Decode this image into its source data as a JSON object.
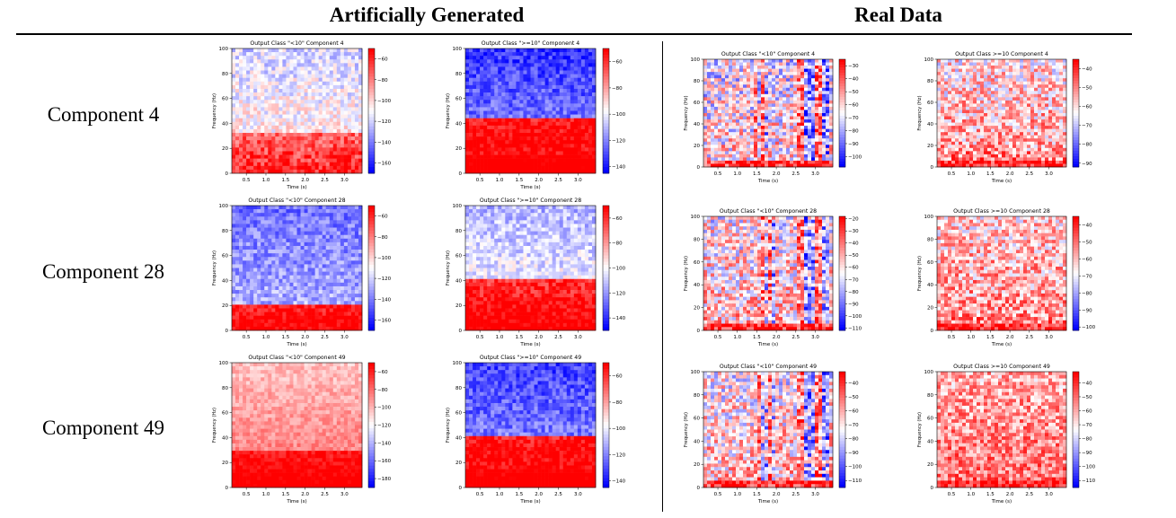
{
  "headers": {
    "artificial": "Artificially Generated",
    "real": "Real Data"
  },
  "row_labels": [
    "Component 4",
    "Component 28",
    "Component 49"
  ],
  "colors": {
    "low": "#0000ff",
    "mid": "#ffffff",
    "high": "#ff0000"
  },
  "chart_data": [
    {
      "type": "heatmap",
      "title": "Output Class \"<10\" Component 4",
      "xlabel": "Time (s)",
      "ylabel": "Frequency (Hz)",
      "xticks": [
        "0.5",
        "1.0",
        "1.5",
        "2.0",
        "2.5",
        "3.0"
      ],
      "yticks": [
        "0",
        "20",
        "40",
        "60",
        "80",
        "100"
      ],
      "ylim": [
        0,
        100
      ],
      "colorbar_ticks": [
        "-60",
        "-80",
        "-100",
        "-120",
        "-140",
        "-160"
      ],
      "colorbar_range": [
        -170,
        -50
      ]
    },
    {
      "type": "heatmap",
      "title": "Output Class \">=10\" Component 4",
      "xlabel": "Time (s)",
      "ylabel": "Frequency (Hz)",
      "xticks": [
        "0.5",
        "1.0",
        "1.5",
        "2.0",
        "2.5",
        "3.0"
      ],
      "yticks": [
        "0",
        "20",
        "40",
        "60",
        "80",
        "100"
      ],
      "ylim": [
        0,
        100
      ],
      "colorbar_ticks": [
        "-60",
        "-80",
        "-100",
        "-120",
        "-140"
      ],
      "colorbar_range": [
        -145,
        -50
      ]
    },
    {
      "type": "heatmap",
      "title": "Output Class \"<10\" Component 4",
      "xlabel": "Time (s)",
      "ylabel": "Frequency (Hz)",
      "xticks": [
        "0.5",
        "1.0",
        "1.5",
        "2.0",
        "2.5",
        "3.0"
      ],
      "yticks": [
        "0",
        "20",
        "40",
        "60",
        "80",
        "100"
      ],
      "ylim": [
        0,
        100
      ],
      "colorbar_ticks": [
        "-30",
        "-40",
        "-50",
        "-60",
        "-70",
        "-80",
        "-90",
        "-100"
      ],
      "colorbar_range": [
        -108,
        -25
      ]
    },
    {
      "type": "heatmap",
      "title": "Output Class >=10 Component 4",
      "xlabel": "Time (s)",
      "ylabel": "Frequency (Hz)",
      "xticks": [
        "0.5",
        "1.0",
        "1.5",
        "2.0",
        "2.5",
        "3.0"
      ],
      "yticks": [
        "0",
        "20",
        "40",
        "60",
        "80",
        "100"
      ],
      "ylim": [
        0,
        100
      ],
      "colorbar_ticks": [
        "-40",
        "-50",
        "-60",
        "-70",
        "-80",
        "-90"
      ],
      "colorbar_range": [
        -92,
        -35
      ]
    },
    {
      "type": "heatmap",
      "title": "Output Class \"<10\" Component 28",
      "xlabel": "Time (s)",
      "ylabel": "Frequency (Hz)",
      "xticks": [
        "0.5",
        "1.0",
        "1.5",
        "2.0",
        "2.5",
        "3.0"
      ],
      "yticks": [
        "0",
        "20",
        "40",
        "60",
        "80",
        "100"
      ],
      "ylim": [
        0,
        100
      ],
      "colorbar_ticks": [
        "-60",
        "-80",
        "-100",
        "-120",
        "-140",
        "-160"
      ],
      "colorbar_range": [
        -170,
        -50
      ]
    },
    {
      "type": "heatmap",
      "title": "Output Class \">=10\" Component 28",
      "xlabel": "Time (s)",
      "ylabel": "Frequency (Hz)",
      "xticks": [
        "0.5",
        "1.0",
        "1.5",
        "2.0",
        "2.5",
        "3.0"
      ],
      "yticks": [
        "0",
        "20",
        "40",
        "60",
        "80",
        "100"
      ],
      "ylim": [
        0,
        100
      ],
      "colorbar_ticks": [
        "-60",
        "-80",
        "-100",
        "-120",
        "-140"
      ],
      "colorbar_range": [
        -150,
        -50
      ]
    },
    {
      "type": "heatmap",
      "title": "Output Class \"<10\" Component 28",
      "xlabel": "Time (s)",
      "ylabel": "Frequency (Hz)",
      "xticks": [
        "0.5",
        "1.0",
        "1.5",
        "2.0",
        "2.5",
        "3.0"
      ],
      "yticks": [
        "0",
        "20",
        "40",
        "60",
        "80",
        "100"
      ],
      "ylim": [
        0,
        100
      ],
      "colorbar_ticks": [
        "-20",
        "-30",
        "-40",
        "-50",
        "-60",
        "-70",
        "-80",
        "-90",
        "-100",
        "-110"
      ],
      "colorbar_range": [
        -112,
        -18
      ]
    },
    {
      "type": "heatmap",
      "title": "Output Class >=10 Component 28",
      "xlabel": "Time (s)",
      "ylabel": "Frequency (Hz)",
      "xticks": [
        "0.5",
        "1.0",
        "1.5",
        "2.0",
        "2.5",
        "3.0"
      ],
      "yticks": [
        "0",
        "20",
        "40",
        "60",
        "80",
        "100"
      ],
      "ylim": [
        0,
        100
      ],
      "colorbar_ticks": [
        "-40",
        "-50",
        "-60",
        "-70",
        "-80",
        "-90",
        "-100"
      ],
      "colorbar_range": [
        -102,
        -35
      ]
    },
    {
      "type": "heatmap",
      "title": "Output Class \"<10\" Component 49",
      "xlabel": "Time (s)",
      "ylabel": "Frequency (Hz)",
      "xticks": [
        "0.5",
        "1.0",
        "1.5",
        "2.0",
        "2.5",
        "3.0"
      ],
      "yticks": [
        "0",
        "20",
        "40",
        "60",
        "80",
        "100"
      ],
      "ylim": [
        0,
        100
      ],
      "colorbar_ticks": [
        "-60",
        "-80",
        "-100",
        "-120",
        "-140",
        "-160",
        "-180"
      ],
      "colorbar_range": [
        -190,
        -50
      ]
    },
    {
      "type": "heatmap",
      "title": "Output Class \">=10\" Component 49",
      "xlabel": "Time (s)",
      "ylabel": "Frequency (Hz)",
      "xticks": [
        "0.5",
        "1.0",
        "1.5",
        "2.0",
        "2.5",
        "3.0"
      ],
      "yticks": [
        "0",
        "20",
        "40",
        "60",
        "80",
        "100"
      ],
      "ylim": [
        0,
        100
      ],
      "colorbar_ticks": [
        "-60",
        "-80",
        "-100",
        "-120",
        "-140"
      ],
      "colorbar_range": [
        -145,
        -50
      ]
    },
    {
      "type": "heatmap",
      "title": "Output Class \"<10\" Component 49",
      "xlabel": "Time (s)",
      "ylabel": "Frequency (Hz)",
      "xticks": [
        "0.5",
        "1.0",
        "1.5",
        "2.0",
        "2.5",
        "3.0"
      ],
      "yticks": [
        "0",
        "20",
        "40",
        "60",
        "80",
        "100"
      ],
      "ylim": [
        0,
        100
      ],
      "colorbar_ticks": [
        "-40",
        "-50",
        "-60",
        "-70",
        "-80",
        "-90",
        "-100",
        "-110"
      ],
      "colorbar_range": [
        -115,
        -32
      ]
    },
    {
      "type": "heatmap",
      "title": "Output Class >=10 Component 49",
      "xlabel": "Time (s)",
      "ylabel": "Frequency (Hz)",
      "xticks": [
        "0.5",
        "1.0",
        "1.5",
        "2.0",
        "2.5",
        "3.0"
      ],
      "yticks": [
        "0",
        "20",
        "40",
        "60",
        "80",
        "100"
      ],
      "ylim": [
        0,
        100
      ],
      "colorbar_ticks": [
        "-40",
        "-50",
        "-60",
        "-70",
        "-80",
        "-90",
        "-100",
        "-110"
      ],
      "colorbar_range": [
        -115,
        -32
      ]
    }
  ]
}
